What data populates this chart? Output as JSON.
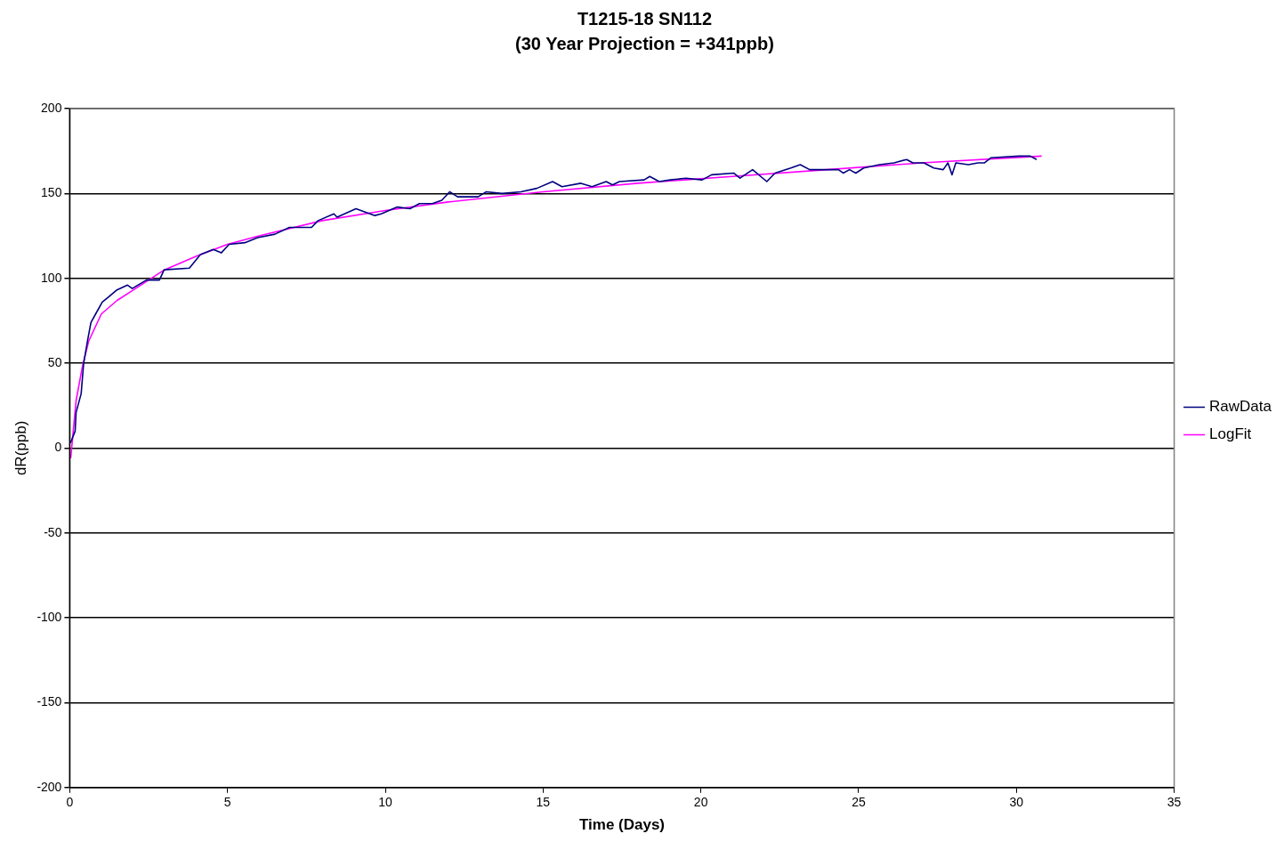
{
  "chart_data": {
    "type": "line",
    "title": "T1215-18 SN112",
    "subtitle": "(30 Year Projection = +341ppb)",
    "xlabel": "Time (Days)",
    "ylabel": "dR(ppb)",
    "xlim": [
      0,
      35
    ],
    "xticks": [
      0,
      5,
      10,
      15,
      20,
      25,
      30,
      35
    ],
    "ylim": [
      -200,
      200
    ],
    "yticks": [
      -200,
      -150,
      -100,
      -50,
      0,
      50,
      100,
      150,
      200
    ],
    "grid": "y",
    "legend": "right",
    "marker": "none",
    "line_style": "solid",
    "series": [
      {
        "name": "RawData",
        "color": "#000080",
        "x": [
          0.02,
          0.17,
          0.2,
          0.36,
          0.44,
          0.57,
          0.67,
          0.82,
          1.03,
          1.23,
          1.48,
          1.83,
          1.98,
          2.43,
          2.84,
          2.99,
          3.79,
          4.14,
          4.55,
          4.8,
          5.05,
          5.55,
          5.95,
          6.5,
          6.96,
          7.66,
          7.87,
          8.37,
          8.47,
          9.07,
          9.67,
          9.87,
          10.38,
          10.78,
          11.08,
          11.49,
          11.79,
          12.04,
          12.29,
          12.94,
          13.2,
          13.7,
          14.3,
          14.8,
          15.3,
          15.6,
          16.2,
          16.55,
          17.0,
          17.2,
          17.42,
          18.2,
          18.38,
          18.68,
          19.03,
          19.53,
          20.04,
          20.34,
          21.04,
          21.24,
          21.64,
          22.09,
          22.35,
          22.85,
          23.15,
          23.45,
          23.66,
          24.36,
          24.51,
          24.71,
          24.91,
          25.16,
          25.66,
          26.12,
          26.52,
          26.72,
          27.07,
          27.38,
          27.68,
          27.83,
          27.96,
          28.08,
          28.48,
          28.78,
          28.98,
          29.19,
          30.09,
          30.24,
          30.44,
          30.64
        ],
        "values": [
          3,
          10,
          21,
          32,
          50,
          64,
          74,
          79,
          86,
          89,
          93,
          96,
          94,
          99,
          99,
          105,
          106,
          114,
          117,
          115,
          120,
          121,
          124,
          126,
          130,
          130,
          134,
          138,
          136,
          141,
          137,
          138,
          142,
          141,
          144,
          144,
          146,
          151,
          148,
          148,
          151,
          150,
          151,
          153,
          157,
          154,
          156,
          154,
          157,
          155,
          157,
          158,
          160,
          157,
          158,
          159,
          158,
          161,
          162,
          159,
          164,
          157,
          162,
          165,
          167,
          164,
          164,
          164,
          162,
          164,
          162,
          165,
          167,
          168,
          170,
          168,
          168,
          165,
          164,
          168,
          161,
          168,
          167,
          168,
          168,
          171,
          172,
          172,
          172,
          170
        ]
      },
      {
        "name": "LogFit",
        "color": "#ff00ff",
        "x": [
          0.03,
          0.1,
          0.2,
          0.4,
          0.6,
          1,
          1.5,
          2,
          3,
          4,
          5,
          6,
          8,
          10,
          12,
          15,
          18,
          21,
          24,
          27,
          30.8
        ],
        "values": [
          -6,
          8,
          28,
          48,
          63,
          79,
          87,
          93,
          105,
          113,
          120,
          125,
          134,
          140,
          145,
          151,
          156,
          160,
          164,
          168,
          172
        ]
      }
    ]
  }
}
